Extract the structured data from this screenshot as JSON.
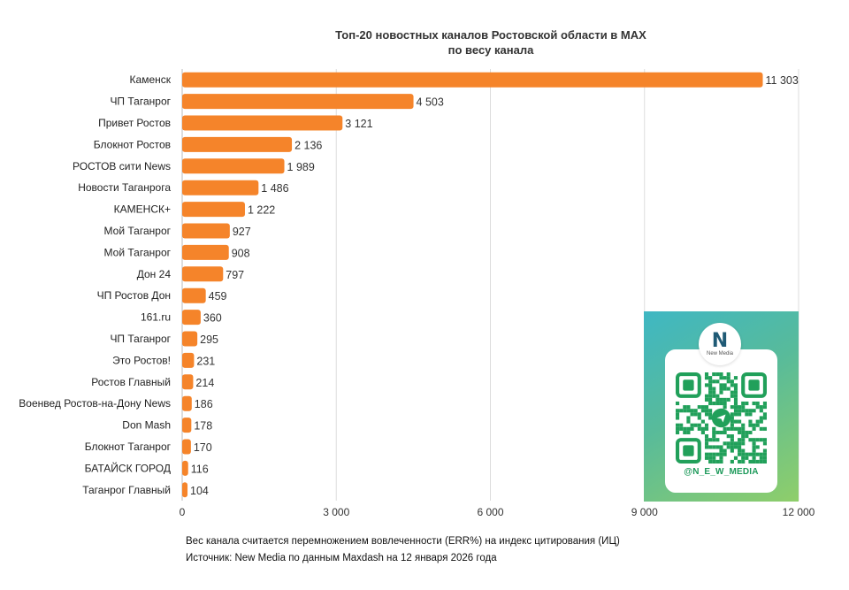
{
  "chart_data": {
    "type": "bar",
    "orientation": "horizontal",
    "title": "Топ-20 новостных каналов Ростовской области в MAX",
    "subtitle": "по весу канала",
    "categories": [
      "Каменск",
      "ЧП Таганрог",
      "Привет Ростов",
      "Блокнот Ростов",
      "РОСТОВ сити News",
      "Новости Таганрога",
      "КАМЕНСК+",
      "Мой Таганрог",
      "Мой Таганрог",
      "Дон 24",
      "ЧП Ростов Дон",
      "161.ru",
      "ЧП Таганрог",
      "Это Ростов!",
      "Ростов Главный",
      "Военвед Ростов-на-Дону News",
      "Don Mash",
      "Блокнот Таганрог",
      "БАТАЙСК ГОРОД",
      "Таганрог Главный"
    ],
    "values": [
      11303,
      4503,
      3121,
      2136,
      1989,
      1486,
      1222,
      927,
      908,
      797,
      459,
      360,
      295,
      231,
      214,
      186,
      178,
      170,
      116,
      104
    ],
    "value_labels": [
      "11 303",
      "4 503",
      "3 121",
      "2 136",
      "1 989",
      "1 486",
      "1 222",
      "927",
      "908",
      "797",
      "459",
      "360",
      "295",
      "231",
      "214",
      "186",
      "178",
      "170",
      "116",
      "104"
    ],
    "xticks": [
      0,
      3000,
      6000,
      9000,
      12000
    ],
    "xtick_labels": [
      "0",
      "3 000",
      "6 000",
      "9 000",
      "12 000"
    ],
    "xlim": [
      0,
      12000
    ],
    "grid": true,
    "bar_color": "#f5842a"
  },
  "footnote": {
    "line1": "Вес канала считается перемножением вовлеченности (ERR%) на индекс цитирования (ИЦ)",
    "line2": "Источник: New Media по данным Maxdash на 12 января 2026 года"
  },
  "qr_card": {
    "logo_mark": "N",
    "logo_text": "New Media",
    "handle": "@N_E_W_MEDIA",
    "icon": "qr-code-icon"
  }
}
